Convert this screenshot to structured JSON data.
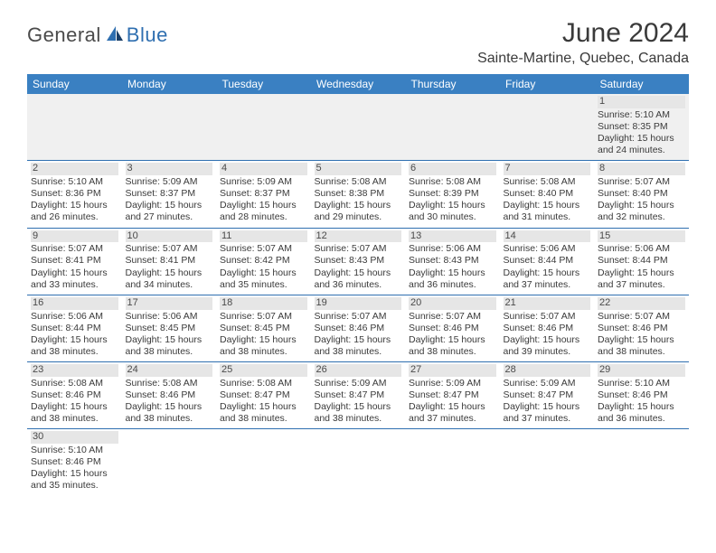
{
  "header": {
    "logo_part1": "General",
    "logo_part2": "Blue",
    "month_title": "June 2024",
    "location": "Sainte-Martine, Quebec, Canada"
  },
  "styling": {
    "header_bg": "#3a80c2",
    "header_fg": "#ffffff",
    "row_divider": "#2f6fb0",
    "daynum_bg": "#e6e6e6",
    "body_text": "#3a3a3a",
    "logo_gray": "#4a4a4a",
    "logo_blue": "#2f6fb0",
    "page_bg": "#ffffff",
    "empty_row_bg": "#f0f0f0",
    "title_fontsize": 30,
    "location_fontsize": 16,
    "dayhead_fontsize": 12,
    "cell_fontsize": 10.5
  },
  "structure": {
    "type": "calendar-table",
    "columns": 7,
    "rows": 6
  },
  "days": [
    "Sunday",
    "Monday",
    "Tuesday",
    "Wednesday",
    "Thursday",
    "Friday",
    "Saturday"
  ],
  "cells": [
    [
      null,
      null,
      null,
      null,
      null,
      null,
      {
        "n": "1",
        "sr": "Sunrise: 5:10 AM",
        "ss": "Sunset: 8:35 PM",
        "d1": "Daylight: 15 hours",
        "d2": "and 24 minutes."
      }
    ],
    [
      {
        "n": "2",
        "sr": "Sunrise: 5:10 AM",
        "ss": "Sunset: 8:36 PM",
        "d1": "Daylight: 15 hours",
        "d2": "and 26 minutes."
      },
      {
        "n": "3",
        "sr": "Sunrise: 5:09 AM",
        "ss": "Sunset: 8:37 PM",
        "d1": "Daylight: 15 hours",
        "d2": "and 27 minutes."
      },
      {
        "n": "4",
        "sr": "Sunrise: 5:09 AM",
        "ss": "Sunset: 8:37 PM",
        "d1": "Daylight: 15 hours",
        "d2": "and 28 minutes."
      },
      {
        "n": "5",
        "sr": "Sunrise: 5:08 AM",
        "ss": "Sunset: 8:38 PM",
        "d1": "Daylight: 15 hours",
        "d2": "and 29 minutes."
      },
      {
        "n": "6",
        "sr": "Sunrise: 5:08 AM",
        "ss": "Sunset: 8:39 PM",
        "d1": "Daylight: 15 hours",
        "d2": "and 30 minutes."
      },
      {
        "n": "7",
        "sr": "Sunrise: 5:08 AM",
        "ss": "Sunset: 8:40 PM",
        "d1": "Daylight: 15 hours",
        "d2": "and 31 minutes."
      },
      {
        "n": "8",
        "sr": "Sunrise: 5:07 AM",
        "ss": "Sunset: 8:40 PM",
        "d1": "Daylight: 15 hours",
        "d2": "and 32 minutes."
      }
    ],
    [
      {
        "n": "9",
        "sr": "Sunrise: 5:07 AM",
        "ss": "Sunset: 8:41 PM",
        "d1": "Daylight: 15 hours",
        "d2": "and 33 minutes."
      },
      {
        "n": "10",
        "sr": "Sunrise: 5:07 AM",
        "ss": "Sunset: 8:41 PM",
        "d1": "Daylight: 15 hours",
        "d2": "and 34 minutes."
      },
      {
        "n": "11",
        "sr": "Sunrise: 5:07 AM",
        "ss": "Sunset: 8:42 PM",
        "d1": "Daylight: 15 hours",
        "d2": "and 35 minutes."
      },
      {
        "n": "12",
        "sr": "Sunrise: 5:07 AM",
        "ss": "Sunset: 8:43 PM",
        "d1": "Daylight: 15 hours",
        "d2": "and 36 minutes."
      },
      {
        "n": "13",
        "sr": "Sunrise: 5:06 AM",
        "ss": "Sunset: 8:43 PM",
        "d1": "Daylight: 15 hours",
        "d2": "and 36 minutes."
      },
      {
        "n": "14",
        "sr": "Sunrise: 5:06 AM",
        "ss": "Sunset: 8:44 PM",
        "d1": "Daylight: 15 hours",
        "d2": "and 37 minutes."
      },
      {
        "n": "15",
        "sr": "Sunrise: 5:06 AM",
        "ss": "Sunset: 8:44 PM",
        "d1": "Daylight: 15 hours",
        "d2": "and 37 minutes."
      }
    ],
    [
      {
        "n": "16",
        "sr": "Sunrise: 5:06 AM",
        "ss": "Sunset: 8:44 PM",
        "d1": "Daylight: 15 hours",
        "d2": "and 38 minutes."
      },
      {
        "n": "17",
        "sr": "Sunrise: 5:06 AM",
        "ss": "Sunset: 8:45 PM",
        "d1": "Daylight: 15 hours",
        "d2": "and 38 minutes."
      },
      {
        "n": "18",
        "sr": "Sunrise: 5:07 AM",
        "ss": "Sunset: 8:45 PM",
        "d1": "Daylight: 15 hours",
        "d2": "and 38 minutes."
      },
      {
        "n": "19",
        "sr": "Sunrise: 5:07 AM",
        "ss": "Sunset: 8:46 PM",
        "d1": "Daylight: 15 hours",
        "d2": "and 38 minutes."
      },
      {
        "n": "20",
        "sr": "Sunrise: 5:07 AM",
        "ss": "Sunset: 8:46 PM",
        "d1": "Daylight: 15 hours",
        "d2": "and 38 minutes."
      },
      {
        "n": "21",
        "sr": "Sunrise: 5:07 AM",
        "ss": "Sunset: 8:46 PM",
        "d1": "Daylight: 15 hours",
        "d2": "and 39 minutes."
      },
      {
        "n": "22",
        "sr": "Sunrise: 5:07 AM",
        "ss": "Sunset: 8:46 PM",
        "d1": "Daylight: 15 hours",
        "d2": "and 38 minutes."
      }
    ],
    [
      {
        "n": "23",
        "sr": "Sunrise: 5:08 AM",
        "ss": "Sunset: 8:46 PM",
        "d1": "Daylight: 15 hours",
        "d2": "and 38 minutes."
      },
      {
        "n": "24",
        "sr": "Sunrise: 5:08 AM",
        "ss": "Sunset: 8:46 PM",
        "d1": "Daylight: 15 hours",
        "d2": "and 38 minutes."
      },
      {
        "n": "25",
        "sr": "Sunrise: 5:08 AM",
        "ss": "Sunset: 8:47 PM",
        "d1": "Daylight: 15 hours",
        "d2": "and 38 minutes."
      },
      {
        "n": "26",
        "sr": "Sunrise: 5:09 AM",
        "ss": "Sunset: 8:47 PM",
        "d1": "Daylight: 15 hours",
        "d2": "and 38 minutes."
      },
      {
        "n": "27",
        "sr": "Sunrise: 5:09 AM",
        "ss": "Sunset: 8:47 PM",
        "d1": "Daylight: 15 hours",
        "d2": "and 37 minutes."
      },
      {
        "n": "28",
        "sr": "Sunrise: 5:09 AM",
        "ss": "Sunset: 8:47 PM",
        "d1": "Daylight: 15 hours",
        "d2": "and 37 minutes."
      },
      {
        "n": "29",
        "sr": "Sunrise: 5:10 AM",
        "ss": "Sunset: 8:46 PM",
        "d1": "Daylight: 15 hours",
        "d2": "and 36 minutes."
      }
    ],
    [
      {
        "n": "30",
        "sr": "Sunrise: 5:10 AM",
        "ss": "Sunset: 8:46 PM",
        "d1": "Daylight: 15 hours",
        "d2": "and 35 minutes."
      },
      null,
      null,
      null,
      null,
      null,
      null
    ]
  ]
}
